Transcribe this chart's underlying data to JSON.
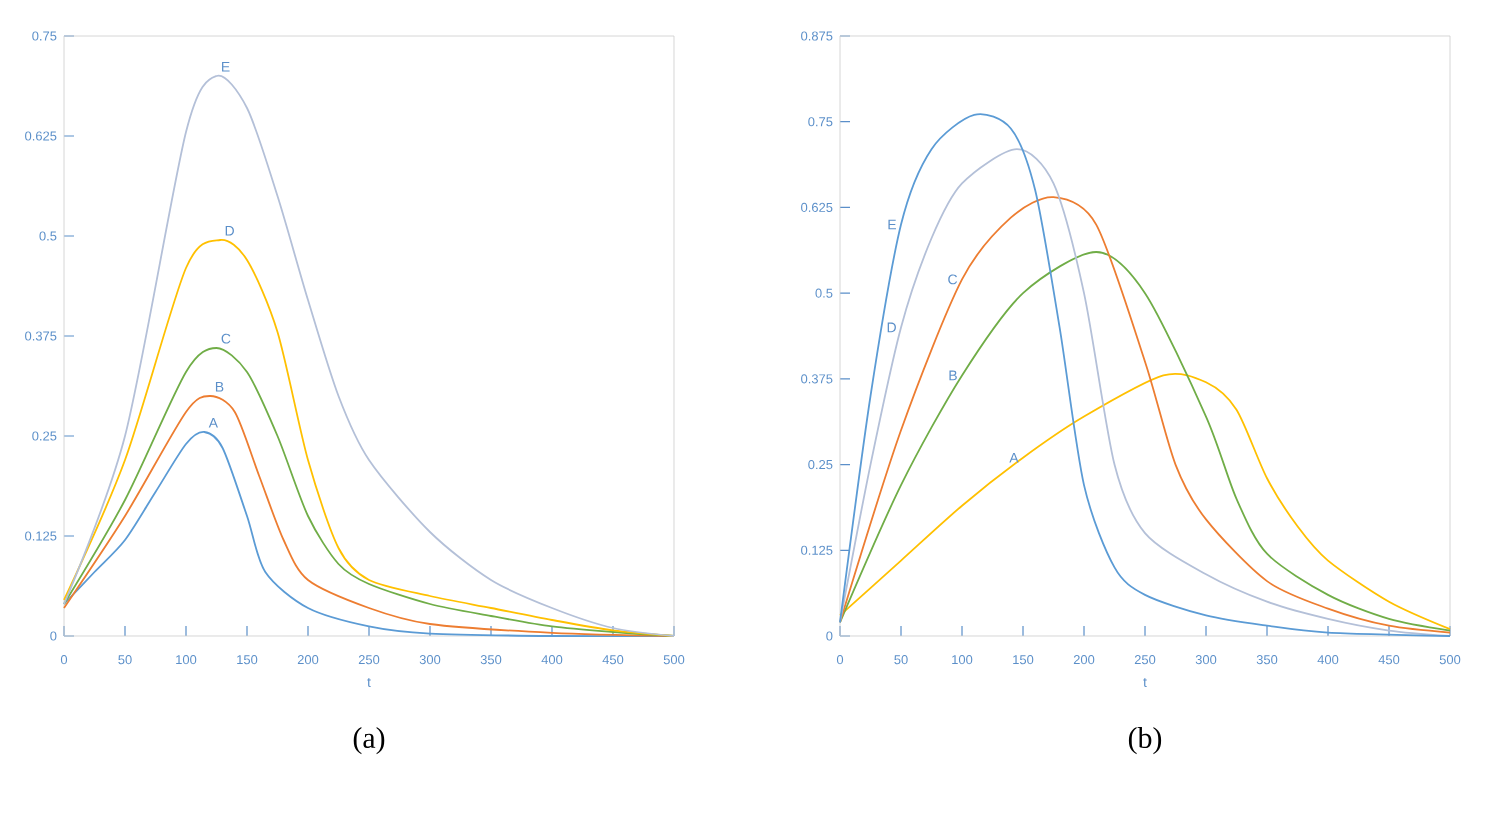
{
  "chart_data": [
    {
      "type": "line",
      "xlabel": "t",
      "annotations": [
        "(a)"
      ],
      "xlim": [
        0,
        500
      ],
      "ylim": [
        0,
        0.75
      ],
      "xticks": [
        0,
        50,
        100,
        150,
        200,
        250,
        300,
        350,
        400,
        450,
        500
      ],
      "yticks": [
        0,
        0.125,
        0.25,
        0.375,
        0.5,
        0.625,
        0.75
      ],
      "grid": false,
      "series": [
        {
          "name": "A",
          "color": "#5b9bd5",
          "x": [
            0,
            25,
            50,
            75,
            100,
            115,
            130,
            150,
            165,
            200,
            250,
            300,
            400,
            500
          ],
          "values": [
            0.04,
            0.08,
            0.12,
            0.18,
            0.24,
            0.255,
            0.235,
            0.15,
            0.08,
            0.035,
            0.012,
            0.003,
            0,
            0
          ]
        },
        {
          "name": "B",
          "color": "#ed7d31",
          "x": [
            0,
            50,
            100,
            120,
            140,
            160,
            180,
            200,
            250,
            300,
            400,
            500
          ],
          "values": [
            0.035,
            0.15,
            0.28,
            0.3,
            0.28,
            0.2,
            0.12,
            0.07,
            0.035,
            0.015,
            0.004,
            0
          ]
        },
        {
          "name": "C",
          "color": "#70ad47",
          "x": [
            0,
            50,
            100,
            125,
            150,
            175,
            200,
            225,
            250,
            300,
            350,
            400,
            450,
            500
          ],
          "values": [
            0.04,
            0.17,
            0.33,
            0.36,
            0.33,
            0.25,
            0.15,
            0.09,
            0.065,
            0.04,
            0.025,
            0.012,
            0.005,
            0
          ]
        },
        {
          "name": "D",
          "color": "#ffc000",
          "x": [
            0,
            50,
            100,
            128,
            150,
            175,
            200,
            225,
            250,
            300,
            350,
            400,
            450,
            500
          ],
          "values": [
            0.045,
            0.22,
            0.46,
            0.495,
            0.47,
            0.38,
            0.22,
            0.11,
            0.07,
            0.05,
            0.035,
            0.02,
            0.007,
            0
          ]
        },
        {
          "name": "E",
          "color": "#b4c0d8",
          "x": [
            0,
            50,
            100,
            125,
            150,
            175,
            200,
            225,
            250,
            300,
            350,
            400,
            450,
            500
          ],
          "values": [
            0.04,
            0.25,
            0.63,
            0.7,
            0.66,
            0.55,
            0.42,
            0.3,
            0.22,
            0.13,
            0.07,
            0.035,
            0.01,
            0
          ]
        }
      ]
    },
    {
      "type": "line",
      "xlabel": "t",
      "annotations": [
        "(b)"
      ],
      "xlim": [
        0,
        500
      ],
      "ylim": [
        0,
        0.875
      ],
      "xticks": [
        0,
        50,
        100,
        150,
        200,
        250,
        300,
        350,
        400,
        450,
        500
      ],
      "yticks": [
        0,
        0.125,
        0.25,
        0.375,
        0.5,
        0.625,
        0.75,
        0.875
      ],
      "grid": false,
      "series": [
        {
          "name": "A",
          "color": "#ffc000",
          "x": [
            0,
            50,
            100,
            150,
            200,
            265,
            300,
            325,
            350,
            375,
            400,
            450,
            500
          ],
          "values": [
            0.03,
            0.11,
            0.19,
            0.26,
            0.32,
            0.38,
            0.37,
            0.33,
            0.23,
            0.16,
            0.11,
            0.05,
            0.01
          ]
        },
        {
          "name": "B",
          "color": "#70ad47",
          "x": [
            0,
            50,
            100,
            150,
            210,
            250,
            300,
            325,
            350,
            400,
            450,
            500
          ],
          "values": [
            0.02,
            0.22,
            0.38,
            0.5,
            0.56,
            0.5,
            0.32,
            0.2,
            0.12,
            0.06,
            0.025,
            0.008
          ]
        },
        {
          "name": "C",
          "color": "#ed7d31",
          "x": [
            0,
            50,
            100,
            140,
            175,
            210,
            250,
            275,
            300,
            350,
            400,
            450,
            500
          ],
          "values": [
            0.02,
            0.3,
            0.52,
            0.61,
            0.64,
            0.6,
            0.4,
            0.25,
            0.17,
            0.08,
            0.04,
            0.015,
            0.005
          ]
        },
        {
          "name": "D",
          "color": "#b4c0d8",
          "x": [
            0,
            25,
            50,
            75,
            100,
            145,
            175,
            200,
            225,
            250,
            300,
            350,
            400,
            450,
            500
          ],
          "values": [
            0.02,
            0.25,
            0.45,
            0.58,
            0.66,
            0.71,
            0.66,
            0.5,
            0.25,
            0.15,
            0.09,
            0.05,
            0.025,
            0.008,
            0
          ]
        },
        {
          "name": "E",
          "color": "#5b9bd5",
          "x": [
            0,
            25,
            50,
            75,
            110,
            140,
            160,
            180,
            200,
            225,
            250,
            300,
            350,
            400,
            500
          ],
          "values": [
            0.02,
            0.35,
            0.6,
            0.71,
            0.76,
            0.74,
            0.65,
            0.45,
            0.22,
            0.1,
            0.06,
            0.03,
            0.015,
            0.005,
            0
          ]
        }
      ]
    }
  ]
}
